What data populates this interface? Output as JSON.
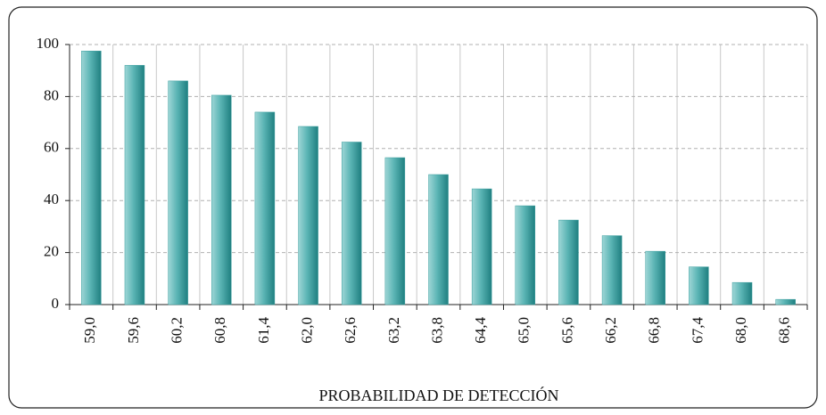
{
  "chart_data": {
    "type": "bar",
    "x_label": "PROBABILIDAD DE DETECCIÓN",
    "categories": [
      "59,0",
      "59,6",
      "60,2",
      "60,8",
      "61,4",
      "62,0",
      "62,6",
      "63,2",
      "63,8",
      "64,4",
      "65,0",
      "65,6",
      "66,2",
      "66,8",
      "67,4",
      "68,0",
      "68,6"
    ],
    "values": [
      97.5,
      92,
      86,
      80.5,
      74,
      68.5,
      62.5,
      56.5,
      50,
      44.5,
      38,
      32.5,
      26.5,
      20.5,
      14.5,
      8.5,
      2
    ],
    "color": "#3a9e9e",
    "ylim": [
      0,
      100
    ],
    "yticks": [
      0,
      20,
      40,
      60,
      80,
      100
    ],
    "grid": true
  }
}
